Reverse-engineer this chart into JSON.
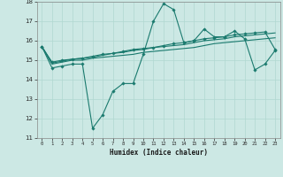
{
  "xlabel": "Humidex (Indice chaleur)",
  "bg_color": "#cce8e4",
  "grid_color": "#b0d8d0",
  "line_color": "#1a7a6e",
  "xlim": [
    -0.5,
    23.5
  ],
  "ylim": [
    11,
    18
  ],
  "xticks": [
    0,
    1,
    2,
    3,
    4,
    5,
    6,
    7,
    8,
    9,
    10,
    11,
    12,
    13,
    14,
    15,
    16,
    17,
    18,
    19,
    20,
    21,
    22,
    23
  ],
  "yticks": [
    11,
    12,
    13,
    14,
    15,
    16,
    17,
    18
  ],
  "series": [
    {
      "x": [
        0,
        1,
        2,
        3,
        4,
        5,
        6,
        7,
        8,
        9,
        10,
        11,
        12,
        13,
        14,
        15,
        16,
        17,
        18,
        19,
        20,
        21,
        22,
        23
      ],
      "y": [
        15.7,
        14.6,
        14.7,
        14.8,
        14.8,
        11.5,
        12.2,
        13.4,
        13.8,
        13.8,
        15.3,
        17.0,
        17.9,
        17.6,
        15.9,
        16.0,
        16.6,
        16.2,
        16.2,
        16.5,
        16.1,
        14.5,
        14.8,
        15.5
      ],
      "marker": "D",
      "markersize": 1.8,
      "linewidth": 0.8
    },
    {
      "x": [
        0,
        1,
        2,
        3,
        4,
        5,
        6,
        7,
        8,
        9,
        10,
        11,
        12,
        13,
        14,
        15,
        16,
        17,
        18,
        19,
        20,
        21,
        22,
        23
      ],
      "y": [
        15.7,
        14.8,
        14.9,
        15.0,
        15.0,
        15.1,
        15.15,
        15.2,
        15.25,
        15.3,
        15.4,
        15.45,
        15.5,
        15.55,
        15.6,
        15.65,
        15.75,
        15.85,
        15.9,
        15.95,
        16.0,
        16.05,
        16.1,
        16.15
      ],
      "marker": null,
      "markersize": 0,
      "linewidth": 0.8
    },
    {
      "x": [
        0,
        1,
        2,
        3,
        4,
        5,
        6,
        7,
        8,
        9,
        10,
        11,
        12,
        13,
        14,
        15,
        16,
        17,
        18,
        19,
        20,
        21,
        22,
        23
      ],
      "y": [
        15.7,
        14.85,
        14.95,
        15.05,
        15.1,
        15.15,
        15.25,
        15.35,
        15.4,
        15.5,
        15.55,
        15.65,
        15.7,
        15.75,
        15.8,
        15.9,
        16.0,
        16.05,
        16.1,
        16.2,
        16.25,
        16.3,
        16.35,
        16.4
      ],
      "marker": null,
      "markersize": 0,
      "linewidth": 0.8
    },
    {
      "x": [
        0,
        1,
        2,
        3,
        4,
        5,
        6,
        7,
        8,
        9,
        10,
        11,
        12,
        13,
        14,
        15,
        16,
        17,
        18,
        19,
        20,
        21,
        22,
        23
      ],
      "y": [
        15.7,
        14.9,
        15.0,
        15.05,
        15.1,
        15.2,
        15.3,
        15.35,
        15.45,
        15.55,
        15.6,
        15.65,
        15.75,
        15.85,
        15.9,
        16.0,
        16.1,
        16.15,
        16.2,
        16.3,
        16.35,
        16.4,
        16.45,
        15.55
      ],
      "marker": "D",
      "markersize": 1.8,
      "linewidth": 0.8
    }
  ]
}
